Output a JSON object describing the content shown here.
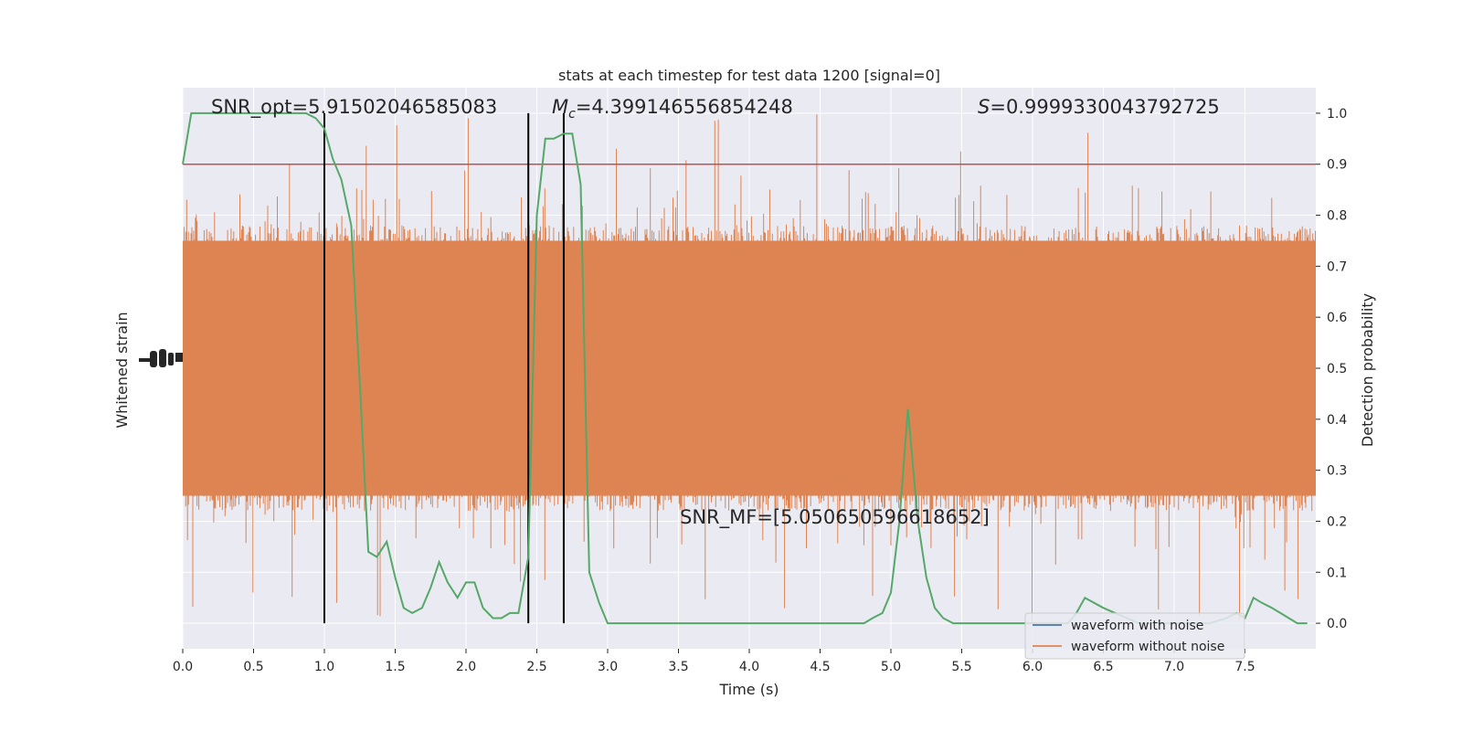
{
  "chart_data": {
    "type": "line",
    "title": "stats at each timestep for test data 1200 [signal=0]",
    "xlabel": "Time (s)",
    "ylabel_left": "Whitened strain",
    "ylabel_right": "Detection probability",
    "xlim": [
      0.0,
      8.0
    ],
    "ylim_right": [
      -0.05,
      1.05
    ],
    "x_ticks": [
      "0.0",
      "0.5",
      "1.0",
      "1.5",
      "2.0",
      "2.5",
      "3.0",
      "3.5",
      "4.0",
      "4.5",
      "5.0",
      "5.5",
      "6.0",
      "6.5",
      "7.0",
      "7.5"
    ],
    "y_ticks_right": [
      "0.0",
      "0.1",
      "0.2",
      "0.3",
      "0.4",
      "0.5",
      "0.6",
      "0.7",
      "0.8",
      "0.9",
      "1.0"
    ],
    "grid": true,
    "background": "#eaeaf2",
    "annotations": {
      "snr_opt": "SNR_opt=5.91502046585083",
      "mc_symbol": "M",
      "mc_sub": "c",
      "mc_value": "=4.399146556854248",
      "s_symbol": "S",
      "s_value": "=0.9999330043792725",
      "snr_mf": "SNR_MF=[5.050650596618652]"
    },
    "threshold": {
      "value": 0.9,
      "color": "#c44e52"
    },
    "vertical_lines": [
      1.0,
      2.44,
      2.69
    ],
    "series": [
      {
        "name": "waveform with noise",
        "color": "#4c72b0"
      },
      {
        "name": "waveform without noise",
        "color": "#dd8452"
      }
    ],
    "detection_probability": {
      "color": "#55a868",
      "x": [
        0.0,
        0.06,
        0.12,
        0.19,
        0.25,
        0.31,
        0.37,
        0.44,
        0.5,
        0.56,
        0.62,
        0.69,
        0.75,
        0.81,
        0.87,
        0.94,
        1.0,
        1.06,
        1.12,
        1.19,
        1.25,
        1.31,
        1.37,
        1.44,
        1.5,
        1.56,
        1.62,
        1.69,
        1.75,
        1.81,
        1.87,
        1.94,
        2.0,
        2.06,
        2.12,
        2.19,
        2.25,
        2.31,
        2.37,
        2.44,
        2.5,
        2.56,
        2.62,
        2.69,
        2.75,
        2.81,
        2.87,
        2.94,
        3.0,
        3.25,
        3.5,
        3.75,
        4.0,
        4.25,
        4.5,
        4.75,
        4.81,
        4.87,
        4.94,
        5.0,
        5.06,
        5.12,
        5.19,
        5.25,
        5.31,
        5.37,
        5.44,
        5.5,
        5.75,
        6.0,
        6.19,
        6.25,
        6.31,
        6.37,
        6.5,
        6.75,
        7.0,
        7.25,
        7.37,
        7.44,
        7.5,
        7.56,
        7.62,
        7.69,
        7.75,
        7.81,
        7.87,
        7.94
      ],
      "y": [
        0.9,
        1.0,
        1.0,
        1.0,
        1.0,
        1.0,
        1.0,
        1.0,
        1.0,
        1.0,
        1.0,
        1.0,
        1.0,
        1.0,
        1.0,
        0.99,
        0.97,
        0.91,
        0.87,
        0.78,
        0.47,
        0.14,
        0.13,
        0.16,
        0.09,
        0.03,
        0.02,
        0.03,
        0.07,
        0.12,
        0.08,
        0.05,
        0.08,
        0.08,
        0.03,
        0.01,
        0.01,
        0.02,
        0.02,
        0.13,
        0.8,
        0.95,
        0.95,
        0.96,
        0.96,
        0.86,
        0.1,
        0.04,
        0.0,
        0.0,
        0.0,
        0.0,
        0.0,
        0.0,
        0.0,
        0.0,
        0.0,
        0.01,
        0.02,
        0.06,
        0.2,
        0.42,
        0.2,
        0.09,
        0.03,
        0.01,
        0.0,
        0.0,
        0.0,
        0.0,
        0.0,
        0.0,
        0.02,
        0.05,
        0.03,
        0.0,
        0.0,
        0.0,
        0.01,
        0.02,
        0.01,
        0.05,
        0.04,
        0.03,
        0.02,
        0.01,
        0.0,
        0.0
      ]
    },
    "noise_band": {
      "center": 0.5,
      "typical_low": 0.3,
      "typical_high": 0.7,
      "extreme_low": 0.0,
      "extreme_high": 1.0
    }
  }
}
